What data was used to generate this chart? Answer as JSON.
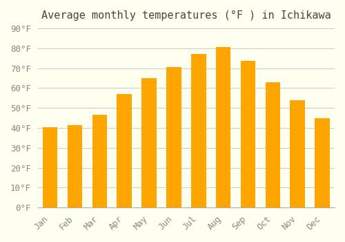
{
  "title": "Average monthly temperatures (°F ) in Ichikawa",
  "months": [
    "Jan",
    "Feb",
    "Mar",
    "Apr",
    "May",
    "Jun",
    "Jul",
    "Aug",
    "Sep",
    "Oct",
    "Nov",
    "Dec"
  ],
  "values": [
    40.5,
    41.5,
    46.5,
    57,
    65,
    70.5,
    77,
    80.5,
    73.5,
    63,
    54,
    45
  ],
  "bar_color_top": "#FFA500",
  "bar_color_bottom": "#FFD580",
  "ylim": [
    0,
    90
  ],
  "yticks": [
    0,
    10,
    20,
    30,
    40,
    50,
    60,
    70,
    80,
    90
  ],
  "ylabel_suffix": "°F",
  "background_color": "#FFFFF0",
  "grid_color": "#cccccc",
  "title_fontsize": 11,
  "tick_fontsize": 9
}
